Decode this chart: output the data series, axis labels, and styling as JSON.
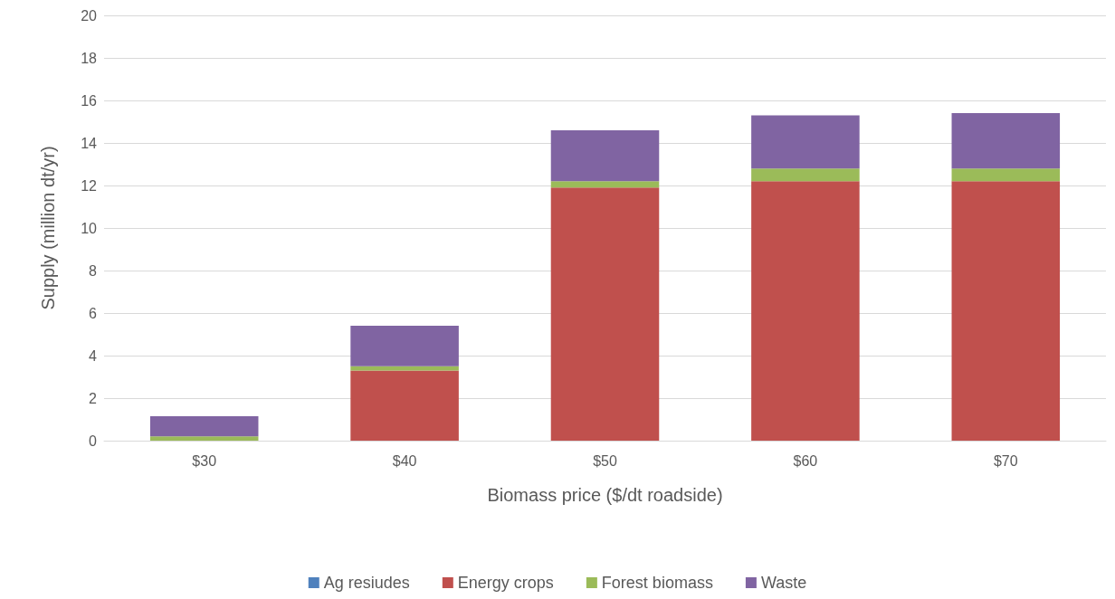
{
  "chart_data": {
    "type": "bar",
    "stacked": true,
    "xlabel": "Biomass price ($/dt roadside)",
    "ylabel": "Supply (million dt/yr)",
    "categories": [
      "$30",
      "$40",
      "$50",
      "$60",
      "$70"
    ],
    "series": [
      {
        "name": "Ag resiudes",
        "color": "#4f81bd",
        "values": [
          0,
          0,
          0,
          0,
          0
        ]
      },
      {
        "name": "Energy crops",
        "color": "#c0504d",
        "values": [
          0,
          3.3,
          11.9,
          12.2,
          12.2
        ]
      },
      {
        "name": "Forest biomass",
        "color": "#9bbb59",
        "values": [
          0.2,
          0.2,
          0.3,
          0.6,
          0.6
        ]
      },
      {
        "name": "Waste",
        "color": "#8064a2",
        "values": [
          0.95,
          1.9,
          2.4,
          2.5,
          2.6
        ]
      }
    ],
    "ylim": [
      0,
      20
    ],
    "yticks": [
      0,
      2,
      4,
      6,
      8,
      10,
      12,
      14,
      16,
      18,
      20
    ],
    "grid": "y",
    "legend": "bottom"
  }
}
